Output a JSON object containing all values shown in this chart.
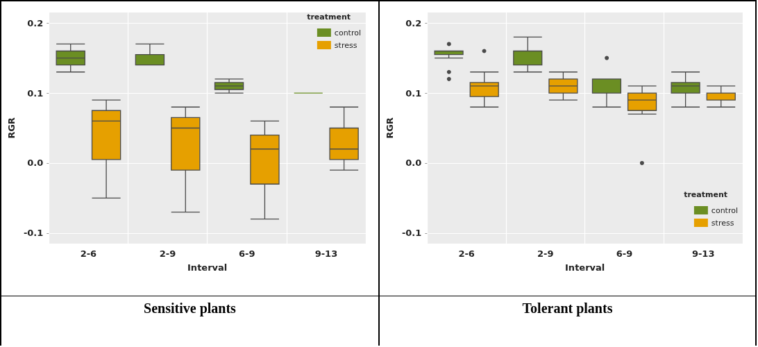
{
  "chart_data": [
    {
      "type": "box",
      "title": "Sensitive plants",
      "xlabel": "Interval",
      "ylabel": "RGR",
      "legend_title": "treatment",
      "legend": "top right",
      "grid": true,
      "categories": [
        "2-6",
        "2-9",
        "6-9",
        "9-13"
      ],
      "ylim": [
        -0.115,
        0.215
      ],
      "yticks": [
        -0.1,
        {
          "value": 0,
          "label": "0.0"
        },
        0.1,
        0.2
      ],
      "series": [
        {
          "name": "control",
          "color": "#6b8e23",
          "boxes": [
            {
              "low": 0.13,
              "q1": 0.14,
              "median": 0.15,
              "q3": 0.16,
              "high": 0.17
            },
            {
              "low": 0.14,
              "q1": 0.14,
              "median": 0.14,
              "q3": 0.155,
              "high": 0.17
            },
            {
              "low": 0.1,
              "q1": 0.105,
              "median": 0.11,
              "q3": 0.115,
              "high": 0.12
            },
            {
              "low": 0.1,
              "q1": 0.1,
              "median": 0.1,
              "q3": 0.1,
              "high": 0.1
            }
          ]
        },
        {
          "name": "stress",
          "color": "#e6a000",
          "boxes": [
            {
              "low": -0.05,
              "q1": 0.005,
              "median": 0.06,
              "q3": 0.075,
              "high": 0.09
            },
            {
              "low": -0.07,
              "q1": -0.01,
              "median": 0.05,
              "q3": 0.065,
              "high": 0.08
            },
            {
              "low": -0.08,
              "q1": -0.03,
              "median": 0.02,
              "q3": 0.04,
              "high": 0.06
            },
            {
              "low": -0.01,
              "q1": 0.005,
              "median": 0.02,
              "q3": 0.05,
              "high": 0.08
            }
          ]
        }
      ]
    },
    {
      "type": "box",
      "title": "Tolerant plants",
      "xlabel": "Interval",
      "ylabel": "RGR",
      "legend_title": "treatment",
      "legend": "bottom right",
      "grid": true,
      "categories": [
        "2-6",
        "2-9",
        "6-9",
        "9-13"
      ],
      "ylim": [
        -0.115,
        0.215
      ],
      "yticks": [
        -0.1,
        {
          "value": 0,
          "label": "0.0"
        },
        0.1,
        0.2
      ],
      "series": [
        {
          "name": "control",
          "color": "#6b8e23",
          "boxes": [
            {
              "low": 0.15,
              "q1": 0.155,
              "median": 0.16,
              "q3": 0.16,
              "high": 0.16,
              "outliers": [
                0.17,
                0.13,
                0.12
              ]
            },
            {
              "low": 0.13,
              "q1": 0.14,
              "median": 0.16,
              "q3": 0.16,
              "high": 0.18
            },
            {
              "low": 0.08,
              "q1": 0.1,
              "median": 0.12,
              "q3": 0.12,
              "high": 0.12,
              "outliers": [
                0.15
              ]
            },
            {
              "low": 0.08,
              "q1": 0.1,
              "median": 0.11,
              "q3": 0.115,
              "high": 0.13
            }
          ]
        },
        {
          "name": "stress",
          "color": "#e6a000",
          "boxes": [
            {
              "low": 0.08,
              "q1": 0.095,
              "median": 0.11,
              "q3": 0.115,
              "high": 0.13,
              "outliers": [
                0.16
              ]
            },
            {
              "low": 0.09,
              "q1": 0.1,
              "median": 0.11,
              "q3": 0.12,
              "high": 0.13
            },
            {
              "low": 0.07,
              "q1": 0.075,
              "median": 0.09,
              "q3": 0.1,
              "high": 0.11,
              "outliers": [
                0
              ]
            },
            {
              "low": 0.08,
              "q1": 0.09,
              "median": 0.1,
              "q3": 0.1,
              "high": 0.11
            }
          ]
        }
      ]
    }
  ]
}
